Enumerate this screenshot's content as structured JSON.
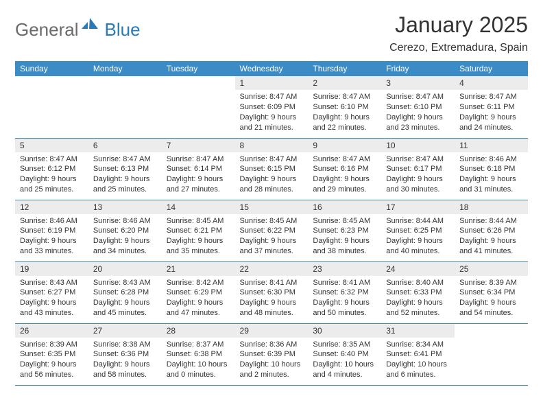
{
  "logo": {
    "general": "General",
    "blue": "Blue"
  },
  "title": "January 2025",
  "location": "Cerezo, Extremadura, Spain",
  "colors": {
    "header_bg": "#3b8bc7",
    "header_fg": "#ffffff",
    "daynum_bg": "#ececec",
    "rule": "#3b8bc7",
    "text": "#333333",
    "logo_gray": "#6a6a6a",
    "logo_blue": "#2a7ab8"
  },
  "weekdays": [
    "Sunday",
    "Monday",
    "Tuesday",
    "Wednesday",
    "Thursday",
    "Friday",
    "Saturday"
  ],
  "weeks": [
    [
      {
        "n": "",
        "sr": "",
        "ss": "",
        "dl": ""
      },
      {
        "n": "",
        "sr": "",
        "ss": "",
        "dl": ""
      },
      {
        "n": "",
        "sr": "",
        "ss": "",
        "dl": ""
      },
      {
        "n": "1",
        "sr": "Sunrise: 8:47 AM",
        "ss": "Sunset: 6:09 PM",
        "dl": "Daylight: 9 hours and 21 minutes."
      },
      {
        "n": "2",
        "sr": "Sunrise: 8:47 AM",
        "ss": "Sunset: 6:10 PM",
        "dl": "Daylight: 9 hours and 22 minutes."
      },
      {
        "n": "3",
        "sr": "Sunrise: 8:47 AM",
        "ss": "Sunset: 6:10 PM",
        "dl": "Daylight: 9 hours and 23 minutes."
      },
      {
        "n": "4",
        "sr": "Sunrise: 8:47 AM",
        "ss": "Sunset: 6:11 PM",
        "dl": "Daylight: 9 hours and 24 minutes."
      }
    ],
    [
      {
        "n": "5",
        "sr": "Sunrise: 8:47 AM",
        "ss": "Sunset: 6:12 PM",
        "dl": "Daylight: 9 hours and 25 minutes."
      },
      {
        "n": "6",
        "sr": "Sunrise: 8:47 AM",
        "ss": "Sunset: 6:13 PM",
        "dl": "Daylight: 9 hours and 25 minutes."
      },
      {
        "n": "7",
        "sr": "Sunrise: 8:47 AM",
        "ss": "Sunset: 6:14 PM",
        "dl": "Daylight: 9 hours and 27 minutes."
      },
      {
        "n": "8",
        "sr": "Sunrise: 8:47 AM",
        "ss": "Sunset: 6:15 PM",
        "dl": "Daylight: 9 hours and 28 minutes."
      },
      {
        "n": "9",
        "sr": "Sunrise: 8:47 AM",
        "ss": "Sunset: 6:16 PM",
        "dl": "Daylight: 9 hours and 29 minutes."
      },
      {
        "n": "10",
        "sr": "Sunrise: 8:47 AM",
        "ss": "Sunset: 6:17 PM",
        "dl": "Daylight: 9 hours and 30 minutes."
      },
      {
        "n": "11",
        "sr": "Sunrise: 8:46 AM",
        "ss": "Sunset: 6:18 PM",
        "dl": "Daylight: 9 hours and 31 minutes."
      }
    ],
    [
      {
        "n": "12",
        "sr": "Sunrise: 8:46 AM",
        "ss": "Sunset: 6:19 PM",
        "dl": "Daylight: 9 hours and 33 minutes."
      },
      {
        "n": "13",
        "sr": "Sunrise: 8:46 AM",
        "ss": "Sunset: 6:20 PM",
        "dl": "Daylight: 9 hours and 34 minutes."
      },
      {
        "n": "14",
        "sr": "Sunrise: 8:45 AM",
        "ss": "Sunset: 6:21 PM",
        "dl": "Daylight: 9 hours and 35 minutes."
      },
      {
        "n": "15",
        "sr": "Sunrise: 8:45 AM",
        "ss": "Sunset: 6:22 PM",
        "dl": "Daylight: 9 hours and 37 minutes."
      },
      {
        "n": "16",
        "sr": "Sunrise: 8:45 AM",
        "ss": "Sunset: 6:23 PM",
        "dl": "Daylight: 9 hours and 38 minutes."
      },
      {
        "n": "17",
        "sr": "Sunrise: 8:44 AM",
        "ss": "Sunset: 6:25 PM",
        "dl": "Daylight: 9 hours and 40 minutes."
      },
      {
        "n": "18",
        "sr": "Sunrise: 8:44 AM",
        "ss": "Sunset: 6:26 PM",
        "dl": "Daylight: 9 hours and 41 minutes."
      }
    ],
    [
      {
        "n": "19",
        "sr": "Sunrise: 8:43 AM",
        "ss": "Sunset: 6:27 PM",
        "dl": "Daylight: 9 hours and 43 minutes."
      },
      {
        "n": "20",
        "sr": "Sunrise: 8:43 AM",
        "ss": "Sunset: 6:28 PM",
        "dl": "Daylight: 9 hours and 45 minutes."
      },
      {
        "n": "21",
        "sr": "Sunrise: 8:42 AM",
        "ss": "Sunset: 6:29 PM",
        "dl": "Daylight: 9 hours and 47 minutes."
      },
      {
        "n": "22",
        "sr": "Sunrise: 8:41 AM",
        "ss": "Sunset: 6:30 PM",
        "dl": "Daylight: 9 hours and 48 minutes."
      },
      {
        "n": "23",
        "sr": "Sunrise: 8:41 AM",
        "ss": "Sunset: 6:32 PM",
        "dl": "Daylight: 9 hours and 50 minutes."
      },
      {
        "n": "24",
        "sr": "Sunrise: 8:40 AM",
        "ss": "Sunset: 6:33 PM",
        "dl": "Daylight: 9 hours and 52 minutes."
      },
      {
        "n": "25",
        "sr": "Sunrise: 8:39 AM",
        "ss": "Sunset: 6:34 PM",
        "dl": "Daylight: 9 hours and 54 minutes."
      }
    ],
    [
      {
        "n": "26",
        "sr": "Sunrise: 8:39 AM",
        "ss": "Sunset: 6:35 PM",
        "dl": "Daylight: 9 hours and 56 minutes."
      },
      {
        "n": "27",
        "sr": "Sunrise: 8:38 AM",
        "ss": "Sunset: 6:36 PM",
        "dl": "Daylight: 9 hours and 58 minutes."
      },
      {
        "n": "28",
        "sr": "Sunrise: 8:37 AM",
        "ss": "Sunset: 6:38 PM",
        "dl": "Daylight: 10 hours and 0 minutes."
      },
      {
        "n": "29",
        "sr": "Sunrise: 8:36 AM",
        "ss": "Sunset: 6:39 PM",
        "dl": "Daylight: 10 hours and 2 minutes."
      },
      {
        "n": "30",
        "sr": "Sunrise: 8:35 AM",
        "ss": "Sunset: 6:40 PM",
        "dl": "Daylight: 10 hours and 4 minutes."
      },
      {
        "n": "31",
        "sr": "Sunrise: 8:34 AM",
        "ss": "Sunset: 6:41 PM",
        "dl": "Daylight: 10 hours and 6 minutes."
      },
      {
        "n": "",
        "sr": "",
        "ss": "",
        "dl": ""
      }
    ]
  ]
}
